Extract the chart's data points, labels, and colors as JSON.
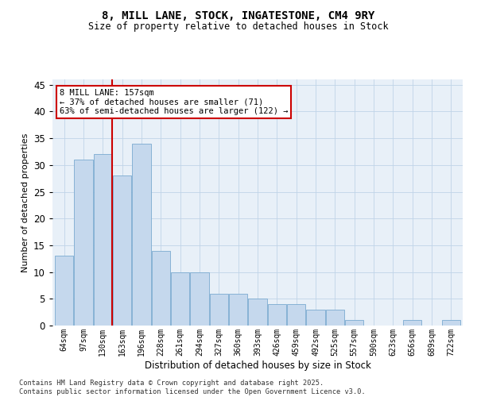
{
  "title1": "8, MILL LANE, STOCK, INGATESTONE, CM4 9RY",
  "title2": "Size of property relative to detached houses in Stock",
  "xlabel": "Distribution of detached houses by size in Stock",
  "ylabel": "Number of detached properties",
  "categories": [
    "64sqm",
    "97sqm",
    "130sqm",
    "163sqm",
    "196sqm",
    "228sqm",
    "261sqm",
    "294sqm",
    "327sqm",
    "360sqm",
    "393sqm",
    "426sqm",
    "459sqm",
    "492sqm",
    "525sqm",
    "557sqm",
    "590sqm",
    "623sqm",
    "656sqm",
    "689sqm",
    "722sqm"
  ],
  "values": [
    13,
    31,
    32,
    28,
    34,
    14,
    10,
    10,
    6,
    6,
    5,
    4,
    4,
    3,
    3,
    1,
    0,
    0,
    1,
    0,
    1
  ],
  "bar_color": "#c5d8ed",
  "bar_edge_color": "#7baad0",
  "grid_color": "#c0d4e8",
  "bg_color": "#e8f0f8",
  "vline_x": 2.5,
  "vline_color": "#cc0000",
  "annotation_text": "8 MILL LANE: 157sqm\n← 37% of detached houses are smaller (71)\n63% of semi-detached houses are larger (122) →",
  "annotation_box_color": "#ffffff",
  "annotation_box_edge": "#cc0000",
  "ylim": [
    0,
    46
  ],
  "yticks": [
    0,
    5,
    10,
    15,
    20,
    25,
    30,
    35,
    40,
    45
  ],
  "footer1": "Contains HM Land Registry data © Crown copyright and database right 2025.",
  "footer2": "Contains public sector information licensed under the Open Government Licence v3.0."
}
